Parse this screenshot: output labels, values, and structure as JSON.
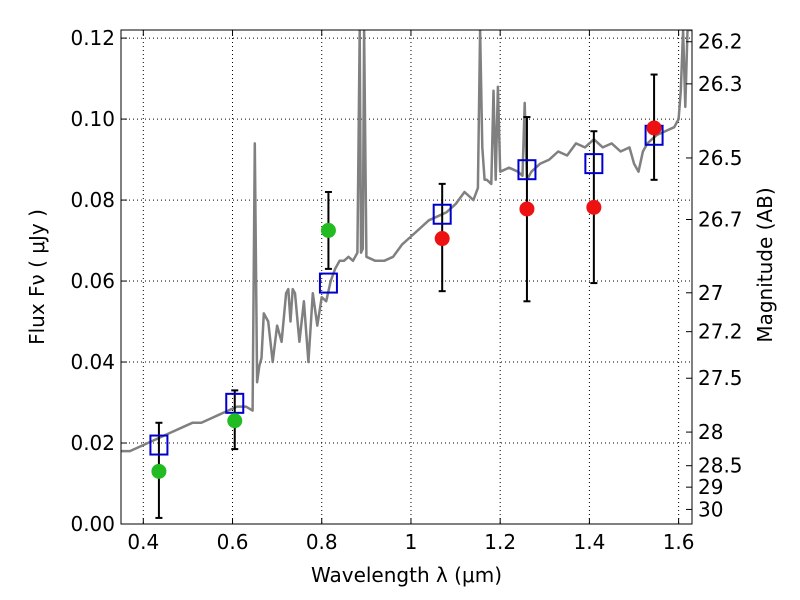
{
  "chart_data": {
    "type": "scatter",
    "xlabel": "Wavelength  λ (μm)",
    "ylabel": "Flux  Fν  ( μJy )",
    "ylabel_right": "Magnitude (AB)",
    "xlim": [
      0.35,
      1.63
    ],
    "ylim": [
      0.0,
      0.122
    ],
    "grid": true,
    "x_ticks": [
      0.4,
      0.6,
      0.8,
      1.0,
      1.2,
      1.4,
      1.6
    ],
    "x_tick_labels": [
      "0.4",
      "0.6",
      "0.8",
      "1",
      "1.2",
      "1.4",
      "1.6"
    ],
    "y_ticks": [
      0.0,
      0.02,
      0.04,
      0.06,
      0.08,
      0.1,
      0.12
    ],
    "y_tick_labels": [
      "0.00",
      "0.02",
      "0.04",
      "0.06",
      "0.08",
      "0.10",
      "0.12"
    ],
    "right_ticks": [
      {
        "label": "26.2",
        "flux": 0.1191
      },
      {
        "label": "26.3",
        "flux": 0.1087
      },
      {
        "label": "26.5",
        "flux": 0.0904
      },
      {
        "label": "26.7",
        "flux": 0.0752
      },
      {
        "label": "27",
        "flux": 0.0571
      },
      {
        "label": "27.2",
        "flux": 0.0475
      },
      {
        "label": "27.5",
        "flux": 0.036
      },
      {
        "label": "28",
        "flux": 0.0227
      },
      {
        "label": "28.5",
        "flux": 0.0144
      },
      {
        "label": "29",
        "flux": 0.0091
      },
      {
        "label": "30",
        "flux": 0.0036
      }
    ],
    "series": [
      {
        "name": "model-spectrum",
        "kind": "line",
        "color": "#808080",
        "x": [
          0.35,
          0.37,
          0.39,
          0.41,
          0.43,
          0.45,
          0.47,
          0.49,
          0.51,
          0.53,
          0.55,
          0.57,
          0.59,
          0.61,
          0.63,
          0.645,
          0.65,
          0.655,
          0.66,
          0.665,
          0.67,
          0.68,
          0.69,
          0.7,
          0.71,
          0.72,
          0.725,
          0.73,
          0.735,
          0.74,
          0.75,
          0.76,
          0.77,
          0.78,
          0.79,
          0.8,
          0.81,
          0.82,
          0.83,
          0.84,
          0.85,
          0.86,
          0.87,
          0.88,
          0.885,
          0.888,
          0.892,
          0.895,
          0.9,
          0.92,
          0.94,
          0.96,
          0.98,
          1.0,
          1.02,
          1.04,
          1.06,
          1.08,
          1.1,
          1.12,
          1.14,
          1.15,
          1.155,
          1.16,
          1.165,
          1.17,
          1.18,
          1.185,
          1.19,
          1.195,
          1.2,
          1.22,
          1.24,
          1.25,
          1.255,
          1.26,
          1.27,
          1.29,
          1.31,
          1.33,
          1.35,
          1.37,
          1.39,
          1.41,
          1.43,
          1.45,
          1.47,
          1.49,
          1.5,
          1.51,
          1.52,
          1.53,
          1.55,
          1.57,
          1.59,
          1.6,
          1.605,
          1.61,
          1.615,
          1.62,
          1.63
        ],
        "y": [
          0.018,
          0.018,
          0.019,
          0.02,
          0.021,
          0.022,
          0.023,
          0.024,
          0.025,
          0.025,
          0.026,
          0.027,
          0.028,
          0.029,
          0.029,
          0.028,
          0.094,
          0.035,
          0.039,
          0.041,
          0.052,
          0.05,
          0.04,
          0.049,
          0.045,
          0.057,
          0.058,
          0.05,
          0.058,
          0.057,
          0.045,
          0.055,
          0.04,
          0.057,
          0.049,
          0.056,
          0.055,
          0.06,
          0.063,
          0.065,
          0.065,
          0.066,
          0.065,
          0.067,
          0.122,
          0.067,
          0.068,
          0.122,
          0.066,
          0.065,
          0.065,
          0.066,
          0.069,
          0.071,
          0.073,
          0.075,
          0.076,
          0.077,
          0.079,
          0.082,
          0.08,
          0.083,
          0.122,
          0.093,
          0.085,
          0.085,
          0.084,
          0.107,
          0.085,
          0.108,
          0.087,
          0.088,
          0.087,
          0.086,
          0.104,
          0.085,
          0.087,
          0.089,
          0.09,
          0.092,
          0.091,
          0.094,
          0.093,
          0.095,
          0.093,
          0.094,
          0.092,
          0.093,
          0.089,
          0.087,
          0.092,
          0.094,
          0.096,
          0.097,
          0.098,
          0.1,
          0.107,
          0.122,
          0.103,
          0.122,
          0.122
        ]
      },
      {
        "name": "model-photometry",
        "kind": "open-square",
        "color": "#0000cc",
        "x": [
          0.435,
          0.605,
          0.815,
          1.07,
          1.26,
          1.41,
          1.545
        ],
        "y": [
          0.0195,
          0.0298,
          0.0595,
          0.0765,
          0.0875,
          0.089,
          0.096
        ]
      },
      {
        "name": "hst-detections",
        "kind": "filled-circle",
        "color": "#22bb22",
        "x": [
          0.435,
          0.605,
          0.815
        ],
        "y": [
          0.013,
          0.0255,
          0.0725
        ]
      },
      {
        "name": "ir-detections",
        "kind": "filled-circle",
        "color": "#ee1111",
        "x": [
          1.07,
          1.26,
          1.41,
          1.545
        ],
        "y": [
          0.0705,
          0.0778,
          0.0782,
          0.0978
        ]
      }
    ],
    "error_bars": [
      {
        "x": 0.435,
        "low": 0.0015,
        "high": 0.025
      },
      {
        "x": 0.605,
        "low": 0.0185,
        "high": 0.033
      },
      {
        "x": 0.815,
        "low": 0.063,
        "high": 0.082
      },
      {
        "x": 1.07,
        "low": 0.0575,
        "high": 0.084
      },
      {
        "x": 1.26,
        "low": 0.055,
        "high": 0.1005
      },
      {
        "x": 1.41,
        "low": 0.0595,
        "high": 0.097
      },
      {
        "x": 1.545,
        "low": 0.085,
        "high": 0.111
      }
    ]
  }
}
